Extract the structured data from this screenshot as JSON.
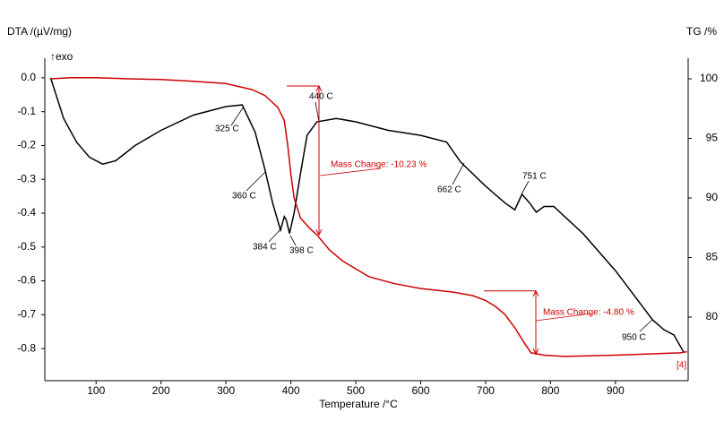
{
  "chart_data": {
    "type": "line",
    "ylabel": "DTA /(µV/mg)",
    "y2label": "TG /%",
    "xlabel": "Temperature /°C",
    "exo_label": "↑exo",
    "xlim": [
      21,
      1012
    ],
    "xticks": [
      100,
      200,
      300,
      400,
      500,
      600,
      700,
      800,
      900
    ],
    "ylim": [
      -0.895,
      0.058
    ],
    "yticks": [
      {
        "value": 0,
        "label": "0.0"
      },
      -0.1,
      -0.2,
      -0.3,
      -0.4,
      -0.5,
      -0.6,
      -0.7,
      -0.8
    ],
    "y2lim": [
      74.66,
      101.73
    ],
    "y2ticks": [
      80,
      85,
      90,
      95,
      100
    ],
    "series": [
      {
        "name": "DTA",
        "color": "#000000",
        "axis": "y",
        "x": [
          30,
          50,
          70,
          90,
          110,
          130,
          160,
          200,
          250,
          300,
          325,
          345,
          360,
          372,
          384,
          390,
          393,
          398,
          405,
          415,
          425,
          440,
          470,
          500,
          550,
          600,
          640,
          662,
          700,
          730,
          745,
          756,
          768,
          778,
          790,
          805,
          850,
          900,
          957,
          975,
          990,
          1005
        ],
        "values": [
          0.0,
          -0.12,
          -0.19,
          -0.235,
          -0.255,
          -0.245,
          -0.2,
          -0.155,
          -0.11,
          -0.085,
          -0.08,
          -0.16,
          -0.27,
          -0.37,
          -0.45,
          -0.41,
          -0.42,
          -0.46,
          -0.4,
          -0.28,
          -0.17,
          -0.13,
          -0.12,
          -0.13,
          -0.155,
          -0.17,
          -0.19,
          -0.25,
          -0.32,
          -0.37,
          -0.39,
          -0.344,
          -0.37,
          -0.397,
          -0.38,
          -0.38,
          -0.46,
          -0.57,
          -0.715,
          -0.745,
          -0.76,
          -0.81
        ]
      },
      {
        "name": "TG",
        "color": "#cc0000",
        "axis": "y2",
        "x": [
          30,
          60,
          100,
          150,
          200,
          250,
          300,
          340,
          360,
          380,
          390,
          395,
          400,
          405,
          415,
          430,
          440,
          460,
          480,
          520,
          560,
          600,
          650,
          680,
          700,
          715,
          730,
          745,
          760,
          770,
          790,
          820,
          900,
          1000,
          1010
        ],
        "values": [
          100.0,
          100.1,
          100.1,
          100.0,
          99.95,
          99.8,
          99.6,
          99.1,
          98.6,
          97.6,
          96.5,
          94.5,
          92.0,
          90.0,
          88.3,
          87.4,
          86.9,
          85.6,
          84.7,
          83.4,
          82.8,
          82.4,
          82.1,
          81.8,
          81.4,
          80.9,
          80.2,
          79.1,
          77.8,
          77.0,
          76.8,
          76.7,
          76.8,
          77.0,
          77.1
        ]
      }
    ],
    "annotations": [
      "325 C",
      "360 C",
      "384 C",
      "398 C",
      "440 C",
      "662 C",
      "751 C",
      "950 C",
      "Mass Change: -10.23 %",
      "Mass Change: -4.80 %",
      "[4]"
    ]
  }
}
